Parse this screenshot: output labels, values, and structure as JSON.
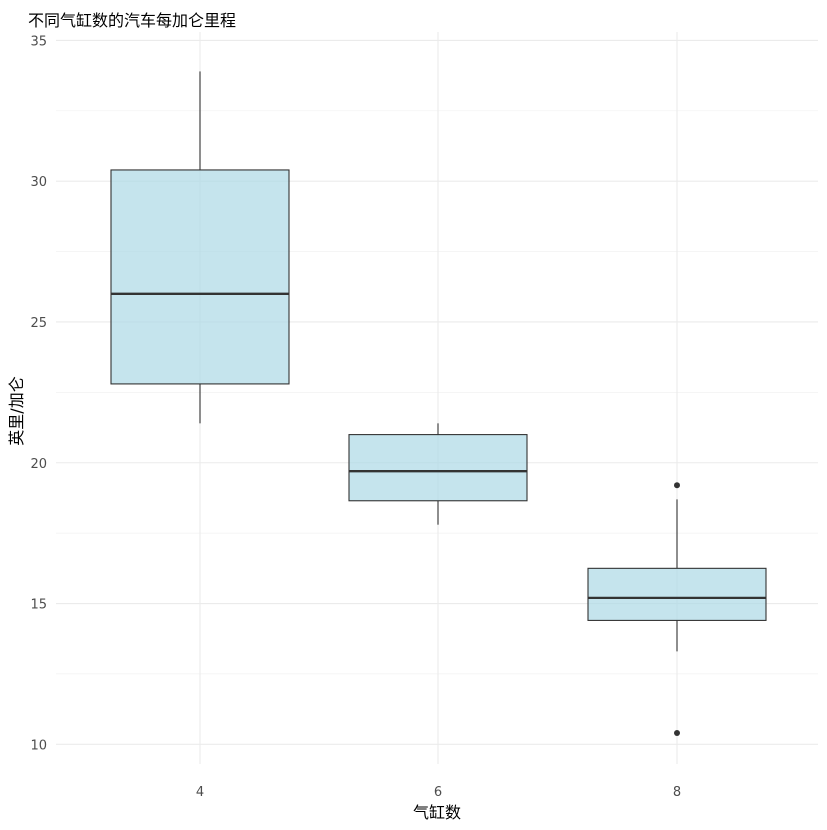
{
  "chart_data": {
    "type": "boxplot",
    "title": "不同气缸数的汽车每加仑里程",
    "xlabel": "气缸数",
    "ylabel": "英里/加仑",
    "categories": [
      "4",
      "6",
      "8"
    ],
    "ylim": [
      9.3,
      35.3
    ],
    "y_ticks": [
      10,
      15,
      20,
      25,
      30,
      35
    ],
    "grid": true,
    "fill_color": "#add8e6",
    "box_border_color": "#333333",
    "boxes": [
      {
        "category": "4",
        "min": 21.4,
        "q1": 22.8,
        "median": 26.0,
        "q3": 30.4,
        "max": 33.9,
        "outliers": []
      },
      {
        "category": "6",
        "min": 17.8,
        "q1": 18.65,
        "median": 19.7,
        "q3": 21.0,
        "max": 21.4,
        "outliers": []
      },
      {
        "category": "8",
        "min": 13.3,
        "q1": 14.4,
        "median": 15.2,
        "q3": 16.25,
        "max": 18.7,
        "outliers": [
          19.2,
          10.4
        ]
      }
    ]
  }
}
